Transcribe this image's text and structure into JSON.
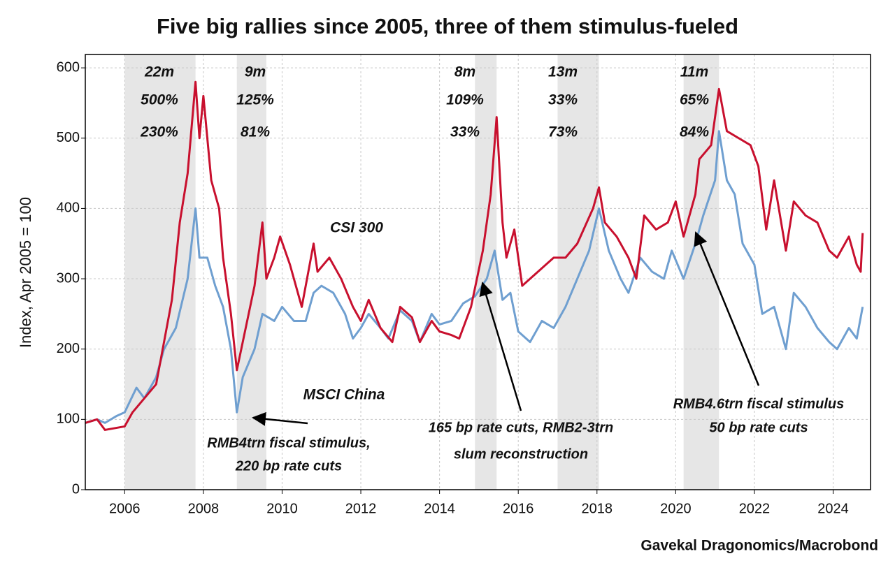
{
  "chart_data": {
    "type": "line",
    "title": "Five big rallies since 2005, three of them stimulus-fueled",
    "y_label": "Index, Apr 2005 = 100",
    "source": "Gavekal Dragonomics/Macrobond",
    "xlim": [
      2005,
      2024.95
    ],
    "ylim": [
      0,
      619
    ],
    "xticks": [
      2006,
      2008,
      2010,
      2012,
      2014,
      2016,
      2018,
      2020,
      2022,
      2024
    ],
    "yticks": [
      0,
      100,
      200,
      300,
      400,
      500,
      600
    ],
    "grid": true,
    "series": [
      {
        "name": "CSI 300",
        "color": "#c8102e",
        "x": [
          2005.0,
          2005.3,
          2005.5,
          2005.8,
          2006.0,
          2006.2,
          2006.5,
          2006.8,
          2007.0,
          2007.2,
          2007.4,
          2007.6,
          2007.8,
          2007.9,
          2008.0,
          2008.2,
          2008.4,
          2008.5,
          2008.7,
          2008.85,
          2009.0,
          2009.3,
          2009.5,
          2009.6,
          2009.8,
          2009.95,
          2010.2,
          2010.5,
          2010.8,
          2010.9,
          2011.2,
          2011.5,
          2011.8,
          2012.0,
          2012.2,
          2012.5,
          2012.8,
          2013.0,
          2013.3,
          2013.5,
          2013.8,
          2014.0,
          2014.3,
          2014.5,
          2014.8,
          2014.95,
          2015.1,
          2015.3,
          2015.45,
          2015.6,
          2015.7,
          2015.9,
          2016.1,
          2016.5,
          2016.9,
          2017.2,
          2017.5,
          2017.9,
          2018.05,
          2018.2,
          2018.5,
          2018.8,
          2019.0,
          2019.2,
          2019.5,
          2019.8,
          2020.0,
          2020.2,
          2020.5,
          2020.6,
          2020.9,
          2021.1,
          2021.3,
          2021.6,
          2021.9,
          2022.1,
          2022.3,
          2022.5,
          2022.8,
          2023.0,
          2023.3,
          2023.6,
          2023.9,
          2024.1,
          2024.4,
          2024.6,
          2024.7,
          2024.75
        ],
        "values": [
          95,
          100,
          85,
          88,
          90,
          110,
          130,
          150,
          210,
          270,
          380,
          450,
          580,
          500,
          560,
          440,
          400,
          330,
          250,
          170,
          210,
          290,
          380,
          300,
          330,
          360,
          320,
          260,
          350,
          310,
          330,
          300,
          260,
          240,
          270,
          230,
          210,
          260,
          245,
          210,
          240,
          225,
          220,
          215,
          260,
          300,
          340,
          420,
          530,
          380,
          330,
          370,
          290,
          310,
          330,
          330,
          350,
          400,
          430,
          380,
          360,
          330,
          300,
          390,
          370,
          380,
          410,
          360,
          420,
          470,
          490,
          570,
          510,
          500,
          490,
          460,
          370,
          440,
          340,
          410,
          390,
          380,
          340,
          330,
          360,
          320,
          310,
          365
        ]
      },
      {
        "name": "MSCI China",
        "color": "#6f9fd0",
        "x": [
          2005.0,
          2005.3,
          2005.5,
          2005.8,
          2006.0,
          2006.3,
          2006.5,
          2006.8,
          2007.0,
          2007.3,
          2007.6,
          2007.8,
          2007.9,
          2008.1,
          2008.3,
          2008.5,
          2008.7,
          2008.85,
          2009.0,
          2009.3,
          2009.5,
          2009.8,
          2010.0,
          2010.3,
          2010.6,
          2010.8,
          2011.0,
          2011.3,
          2011.6,
          2011.8,
          2012.0,
          2012.2,
          2012.5,
          2012.7,
          2013.0,
          2013.3,
          2013.5,
          2013.8,
          2014.0,
          2014.3,
          2014.6,
          2014.9,
          2015.2,
          2015.4,
          2015.6,
          2015.8,
          2016.0,
          2016.3,
          2016.6,
          2016.9,
          2017.2,
          2017.5,
          2017.8,
          2018.05,
          2018.3,
          2018.6,
          2018.8,
          2019.1,
          2019.4,
          2019.7,
          2019.9,
          2020.2,
          2020.5,
          2020.7,
          2021.0,
          2021.1,
          2021.3,
          2021.5,
          2021.7,
          2022.0,
          2022.2,
          2022.5,
          2022.8,
          2023.0,
          2023.3,
          2023.6,
          2023.9,
          2024.1,
          2024.4,
          2024.6,
          2024.75
        ],
        "values": [
          95,
          100,
          95,
          105,
          110,
          145,
          130,
          160,
          200,
          230,
          300,
          400,
          330,
          330,
          290,
          260,
          200,
          110,
          160,
          200,
          250,
          240,
          260,
          240,
          240,
          280,
          290,
          280,
          250,
          215,
          230,
          250,
          230,
          215,
          255,
          240,
          210,
          250,
          235,
          240,
          265,
          275,
          300,
          340,
          270,
          280,
          225,
          210,
          240,
          230,
          260,
          300,
          340,
          400,
          340,
          300,
          280,
          330,
          310,
          300,
          340,
          300,
          350,
          390,
          440,
          510,
          440,
          420,
          350,
          320,
          250,
          260,
          200,
          280,
          260,
          230,
          210,
          200,
          230,
          215,
          260
        ]
      }
    ],
    "rallies": [
      {
        "start": 2006.0,
        "end": 2007.8,
        "duration": "22m",
        "csi": "500%",
        "msci": "230%"
      },
      {
        "start": 2008.85,
        "end": 2009.6,
        "duration": "9m",
        "csi": "125%",
        "msci": "81%"
      },
      {
        "start": 2014.9,
        "end": 2015.45,
        "duration": "8m",
        "csi": "109%",
        "msci": "33%"
      },
      {
        "start": 2017.0,
        "end": 2018.05,
        "duration": "13m",
        "csi": "33%",
        "msci": "73%"
      },
      {
        "start": 2020.2,
        "end": 2021.1,
        "duration": "11m",
        "csi": "65%",
        "msci": "84%"
      }
    ],
    "annotations": [
      [
        "RMB4trn fiscal stimulus,",
        "220 bp rate cuts"
      ],
      [
        "165 bp rate cuts, RMB2-3trn",
        "slum reconstruction"
      ],
      [
        "RMB4.6trn fiscal stimulus",
        "50 bp rate cuts"
      ]
    ]
  }
}
